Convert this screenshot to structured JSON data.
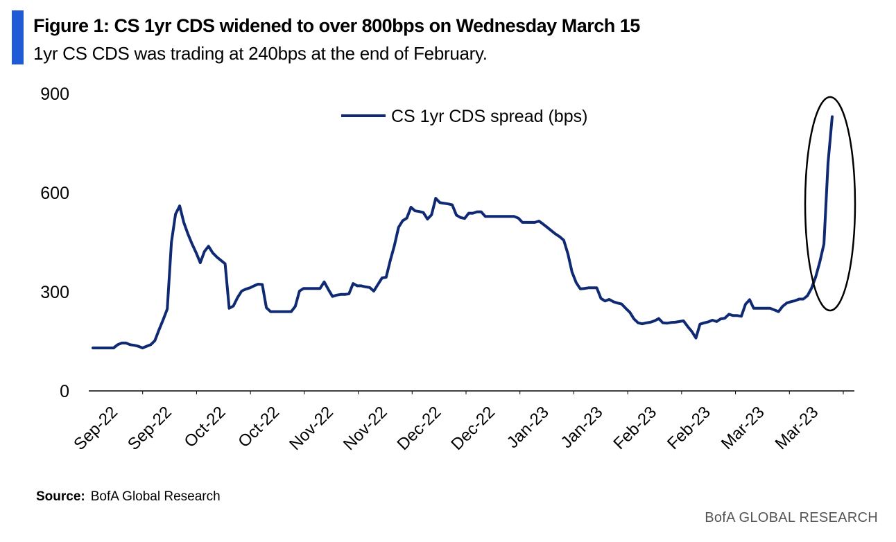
{
  "figure": {
    "title": "Figure 1: CS 1yr CDS widened to over 800bps on Wednesday March 15",
    "subtitle": "1yr CS CDS was trading at 240bps at the end of February."
  },
  "source": {
    "label": "Source:",
    "text": "BofA Global Research"
  },
  "footer": {
    "brand": "BofA GLOBAL RESEARCH"
  },
  "colors": {
    "accent": "#1f5bd6",
    "line": "#0f2a72",
    "ellipse": "#000000"
  },
  "chart_data": {
    "type": "line",
    "title": "Figure 1: CS 1yr CDS widened to over 800bps on Wednesday March 15",
    "xlabel": "",
    "ylabel": "",
    "ylim": [
      0,
      900
    ],
    "yticks": [
      0,
      300,
      600,
      900
    ],
    "x_tick_labels": [
      "Sep-22",
      "Sep-22",
      "Oct-22",
      "Oct-22",
      "Nov-22",
      "Nov-22",
      "Dec-22",
      "Dec-22",
      "Jan-23",
      "Jan-23",
      "Feb-23",
      "Feb-23",
      "Mar-23",
      "Mar-23"
    ],
    "legend": "top-center",
    "grid": false,
    "annotation": "ellipse around final spike",
    "series": [
      {
        "name": "CS 1yr CDS spread (bps)",
        "values": [
          130,
          130,
          130,
          130,
          130,
          130,
          140,
          145,
          145,
          140,
          138,
          135,
          130,
          135,
          140,
          152,
          185,
          215,
          248,
          450,
          535,
          560,
          510,
          475,
          445,
          418,
          388,
          422,
          438,
          418,
          405,
          395,
          385,
          250,
          257,
          282,
          302,
          308,
          312,
          318,
          323,
          322,
          252,
          240,
          240,
          240,
          240,
          240,
          240,
          256,
          302,
          310,
          310,
          310,
          310,
          310,
          330,
          307,
          286,
          290,
          292,
          292,
          294,
          325,
          318,
          318,
          315,
          313,
          302,
          322,
          342,
          344,
          395,
          440,
          495,
          515,
          523,
          556,
          545,
          543,
          540,
          520,
          533,
          583,
          570,
          568,
          566,
          563,
          532,
          525,
          522,
          538,
          538,
          542,
          542,
          528,
          528,
          528,
          528,
          528,
          528,
          528,
          528,
          523,
          510,
          510,
          510,
          510,
          514,
          505,
          495,
          485,
          475,
          467,
          456,
          415,
          360,
          328,
          309,
          310,
          312,
          312,
          312,
          280,
          272,
          277,
          270,
          266,
          263,
          250,
          238,
          218,
          206,
          203,
          206,
          208,
          212,
          219,
          206,
          205,
          207,
          208,
          210,
          212,
          195,
          180,
          160,
          202,
          206,
          209,
          214,
          210,
          218,
          220,
          232,
          228,
          228,
          226,
          262,
          276,
          250,
          250,
          250,
          250,
          250,
          245,
          240,
          256,
          266,
          270,
          273,
          278,
          278,
          288,
          311,
          345,
          390,
          445,
          690,
          830
        ]
      }
    ]
  }
}
